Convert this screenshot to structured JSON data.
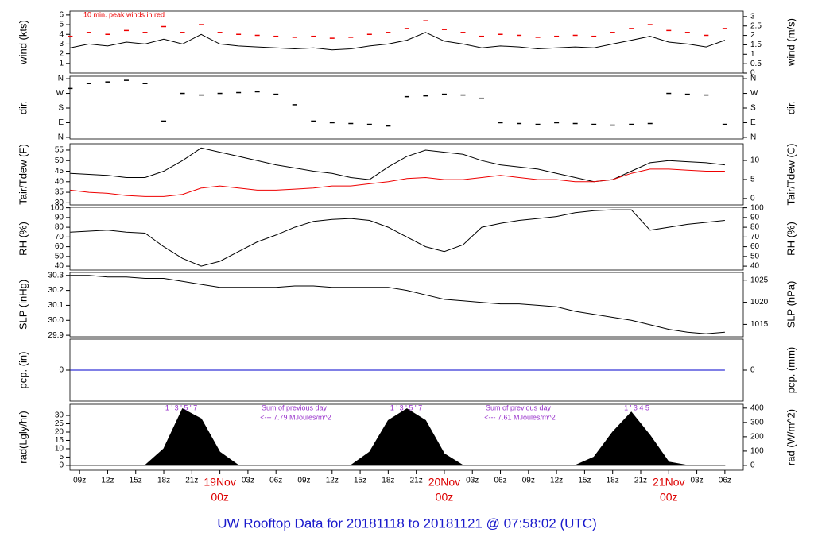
{
  "chart_data": {
    "type": "timeseries-panels",
    "title": "UW Rooftop Data for 20181118  to  20181121 @ 07:58:02  (UTC)",
    "x": [
      "2018-11-18T08:00Z",
      "2018-11-18T10:00Z",
      "2018-11-18T12:00Z",
      "2018-11-18T14:00Z",
      "2018-11-18T16:00Z",
      "2018-11-18T18:00Z",
      "2018-11-18T20:00Z",
      "2018-11-18T22:00Z",
      "2018-11-19T00:00Z",
      "2018-11-19T02:00Z",
      "2018-11-19T04:00Z",
      "2018-11-19T06:00Z",
      "2018-11-19T08:00Z",
      "2018-11-19T10:00Z",
      "2018-11-19T12:00Z",
      "2018-11-19T14:00Z",
      "2018-11-19T16:00Z",
      "2018-11-19T18:00Z",
      "2018-11-19T20:00Z",
      "2018-11-19T22:00Z",
      "2018-11-20T00:00Z",
      "2018-11-20T02:00Z",
      "2018-11-20T04:00Z",
      "2018-11-20T06:00Z",
      "2018-11-20T08:00Z",
      "2018-11-20T10:00Z",
      "2018-11-20T12:00Z",
      "2018-11-20T14:00Z",
      "2018-11-20T16:00Z",
      "2018-11-20T18:00Z",
      "2018-11-20T20:00Z",
      "2018-11-20T22:00Z",
      "2018-11-21T00:00Z",
      "2018-11-21T02:00Z",
      "2018-11-21T04:00Z",
      "2018-11-21T06:00Z"
    ],
    "xlim": [
      "2018-11-18T07:58Z",
      "2018-11-21T07:58Z"
    ],
    "xticks": [
      {
        "value": "2018-11-18T09:00Z",
        "label": "09z"
      },
      {
        "value": "2018-11-18T12:00Z",
        "label": "12z"
      },
      {
        "value": "2018-11-18T15:00Z",
        "label": "15z"
      },
      {
        "value": "2018-11-18T18:00Z",
        "label": "18z"
      },
      {
        "value": "2018-11-18T21:00Z",
        "label": "21z"
      },
      {
        "value": "2018-11-19T00:00Z",
        "label": "00z",
        "date": "19Nov"
      },
      {
        "value": "2018-11-19T03:00Z",
        "label": "03z"
      },
      {
        "value": "2018-11-19T06:00Z",
        "label": "06z"
      },
      {
        "value": "2018-11-19T09:00Z",
        "label": "09z"
      },
      {
        "value": "2018-11-19T12:00Z",
        "label": "12z"
      },
      {
        "value": "2018-11-19T15:00Z",
        "label": "15z"
      },
      {
        "value": "2018-11-19T18:00Z",
        "label": "18z"
      },
      {
        "value": "2018-11-19T21:00Z",
        "label": "21z"
      },
      {
        "value": "2018-11-20T00:00Z",
        "label": "00z",
        "date": "20Nov"
      },
      {
        "value": "2018-11-20T03:00Z",
        "label": "03z"
      },
      {
        "value": "2018-11-20T06:00Z",
        "label": "06z"
      },
      {
        "value": "2018-11-20T09:00Z",
        "label": "09z"
      },
      {
        "value": "2018-11-20T12:00Z",
        "label": "12z"
      },
      {
        "value": "2018-11-20T15:00Z",
        "label": "15z"
      },
      {
        "value": "2018-11-20T18:00Z",
        "label": "18z"
      },
      {
        "value": "2018-11-20T21:00Z",
        "label": "21z"
      },
      {
        "value": "2018-11-21T00:00Z",
        "label": "00z",
        "date": "21Nov"
      },
      {
        "value": "2018-11-21T03:00Z",
        "label": "03z"
      },
      {
        "value": "2018-11-21T06:00Z",
        "label": "06z"
      }
    ],
    "panels": [
      {
        "ylabel": "wind (kts)",
        "y2label": "wind (m/s)",
        "ylim": [
          0,
          6.4
        ],
        "yticks": [
          1,
          2,
          3,
          4,
          5,
          6
        ],
        "y2lim": [
          0,
          3.29
        ],
        "y2ticks": [
          0,
          0.5,
          1,
          1.5,
          2,
          2.5,
          3
        ],
        "annotations": [
          {
            "text": "10 min. peak winds in red",
            "color": "#ee0000"
          }
        ],
        "series": [
          {
            "type": "dash",
            "color": "#ee0000",
            "values": [
              3.8,
              4.2,
              4.0,
              4.4,
              4.2,
              4.8,
              4.2,
              5.0,
              4.2,
              4.0,
              3.9,
              3.8,
              3.7,
              3.8,
              3.6,
              3.7,
              4.0,
              4.2,
              4.6,
              5.4,
              4.5,
              4.2,
              3.8,
              4.0,
              3.9,
              3.7,
              3.8,
              3.9,
              3.8,
              4.2,
              4.6,
              5.0,
              4.4,
              4.2,
              3.9,
              4.6
            ]
          },
          {
            "type": "line",
            "color": "#000000",
            "values": [
              2.6,
              3.0,
              2.8,
              3.2,
              3.0,
              3.5,
              3.0,
              4.0,
              3.0,
              2.8,
              2.7,
              2.6,
              2.5,
              2.6,
              2.4,
              2.5,
              2.8,
              3.0,
              3.4,
              4.2,
              3.3,
              3.0,
              2.6,
              2.8,
              2.7,
              2.5,
              2.6,
              2.7,
              2.6,
              3.0,
              3.4,
              3.8,
              3.2,
              3.0,
              2.7,
              3.4
            ]
          }
        ]
      },
      {
        "ylabel": "dir.",
        "y2label": "dir.",
        "ylim": [
          -10,
          375
        ],
        "yticks": [
          {
            "value": 0,
            "label": "N"
          },
          {
            "value": 90,
            "label": "E"
          },
          {
            "value": 180,
            "label": "S"
          },
          {
            "value": 270,
            "label": "W"
          },
          {
            "value": 360,
            "label": "N"
          }
        ],
        "y2lim": [
          -10,
          375
        ],
        "y2ticks": [
          {
            "value": 0,
            "label": "N"
          },
          {
            "value": 90,
            "label": "E"
          },
          {
            "value": 180,
            "label": "S"
          },
          {
            "value": 270,
            "label": "W"
          },
          {
            "value": 360,
            "label": "N"
          }
        ],
        "series": [
          {
            "type": "dash",
            "color": "#000000",
            "values": [
              300,
              330,
              340,
              350,
              330,
              100,
              270,
              260,
              270,
              275,
              280,
              265,
              200,
              100,
              90,
              85,
              80,
              70,
              250,
              255,
              265,
              260,
              240,
              90,
              85,
              80,
              90,
              85,
              80,
              75,
              80,
              85,
              270,
              265,
              260,
              80
            ]
          }
        ]
      },
      {
        "ylabel": "Tair/Tdew (F)",
        "y2label": "Tair/Tdew (C)",
        "ylim": [
          29,
          58
        ],
        "yticks": [
          30,
          35,
          40,
          45,
          50,
          55
        ],
        "y2lim": [
          -1.7,
          14.4
        ],
        "y2ticks": [
          0,
          5,
          10
        ],
        "series": [
          {
            "type": "line",
            "color": "#000000",
            "values": [
              44,
              43.5,
              43,
              42,
              42,
              45,
              50,
              56,
              54,
              52,
              50,
              48,
              46.5,
              45,
              44,
              42,
              41,
              47,
              52,
              55,
              54,
              53,
              50,
              48,
              47,
              46,
              44,
              42,
              40,
              41,
              45,
              49,
              50,
              49.5,
              49,
              48
            ]
          },
          {
            "type": "line",
            "color": "#ee0000",
            "values": [
              36,
              35,
              34.5,
              33.5,
              33,
              33,
              34,
              37,
              38,
              37,
              36,
              36,
              36.5,
              37,
              38,
              38,
              39,
              40,
              41.5,
              42,
              41,
              41,
              42,
              43,
              42,
              41,
              41,
              40,
              40,
              41,
              44,
              46,
              46,
              45.5,
              45,
              45
            ]
          }
        ]
      },
      {
        "ylabel": "RH (%)",
        "y2label": "RH (%)",
        "ylim": [
          36,
          100.5
        ],
        "yticks": [
          40,
          50,
          60,
          70,
          80,
          90,
          100
        ],
        "y2lim": [
          36,
          100.5
        ],
        "y2ticks": [
          40,
          50,
          60,
          70,
          80,
          90,
          100
        ],
        "series": [
          {
            "type": "line",
            "color": "#000000",
            "values": [
              75,
              76,
              77,
              75,
              74,
              60,
              48,
              40,
              45,
              55,
              65,
              72,
              80,
              86,
              88,
              89,
              87,
              80,
              70,
              60,
              55,
              62,
              80,
              84,
              87,
              89,
              91,
              95,
              97,
              98,
              98,
              77,
              80,
              83,
              85,
              87
            ]
          }
        ]
      },
      {
        "ylabel": "SLP (inHg)",
        "y2label": "SLP (hPa)",
        "ylim": [
          29.89,
          30.32
        ],
        "yticks": [
          29.9,
          {
            "value": 30,
            "label": "30.0"
          },
          30.1,
          30.2,
          30.3
        ],
        "y2lim": [
          1012.2,
          1026.75
        ],
        "y2ticks": [
          1015,
          1020,
          1025
        ],
        "series": [
          {
            "type": "line",
            "color": "#000000",
            "values": [
              30.3,
              30.3,
              30.29,
              30.29,
              30.28,
              30.28,
              30.26,
              30.24,
              30.22,
              30.22,
              30.22,
              30.22,
              30.23,
              30.23,
              30.22,
              30.22,
              30.22,
              30.22,
              30.2,
              30.17,
              30.14,
              30.13,
              30.12,
              30.11,
              30.11,
              30.1,
              30.09,
              30.06,
              30.04,
              30.02,
              30.0,
              29.97,
              29.94,
              29.92,
              29.91,
              29.92
            ]
          }
        ]
      },
      {
        "ylabel": "pcp. (in)",
        "y2label": "pcp. (mm)",
        "ylim": [
          -1,
          1
        ],
        "yticks": [
          0
        ],
        "y2lim": [
          -25.4,
          25.4
        ],
        "y2ticks": [
          0
        ],
        "series": [
          {
            "type": "line",
            "color": "#0000cc",
            "values": [
              0,
              0,
              0,
              0,
              0,
              0,
              0,
              0,
              0,
              0,
              0,
              0,
              0,
              0,
              0,
              0,
              0,
              0,
              0,
              0,
              0,
              0,
              0,
              0,
              0,
              0,
              0,
              0,
              0,
              0,
              0,
              0,
              0,
              0,
              0,
              0
            ]
          }
        ]
      },
      {
        "ylabel": "rad(Lgly/hr)",
        "y2label": "rad (W/m^2)",
        "ylim": [
          -2.9,
          36.7
        ],
        "yticks": [
          0,
          5,
          10,
          15,
          20,
          25,
          30
        ],
        "y2lim": [
          -33.7,
          426.8
        ],
        "y2ticks": [
          0,
          100,
          200,
          300,
          400
        ],
        "annotations": [
          {
            "text": "1 ' 3 ' 5 ' 7",
            "color": "#9933cc"
          },
          {
            "text": "Sum of previous day",
            "color": "#9933cc"
          },
          {
            "text": "<--- 7.79 MJoules/m^2",
            "color": "#9933cc"
          },
          {
            "text": "1 ' 3 ' 5 ' 7",
            "color": "#9933cc"
          },
          {
            "text": "Sum of previous day",
            "color": "#9933cc"
          },
          {
            "text": "<--- 7.61 MJoules/m^2",
            "color": "#9933cc"
          },
          {
            "text": "1 ' 3 4 5",
            "color": "#9933cc"
          }
        ],
        "series": [
          {
            "type": "area",
            "color": "#000000",
            "values": [
              0,
              0,
              0,
              0,
              0,
              10,
              34,
              28,
              8,
              0,
              0,
              0,
              0,
              0,
              0,
              0,
              8,
              27,
              34,
              27,
              7,
              0,
              0,
              0,
              0,
              0,
              0,
              0,
              5,
              20,
              32,
              18,
              2,
              0,
              0,
              0
            ]
          }
        ]
      }
    ]
  }
}
